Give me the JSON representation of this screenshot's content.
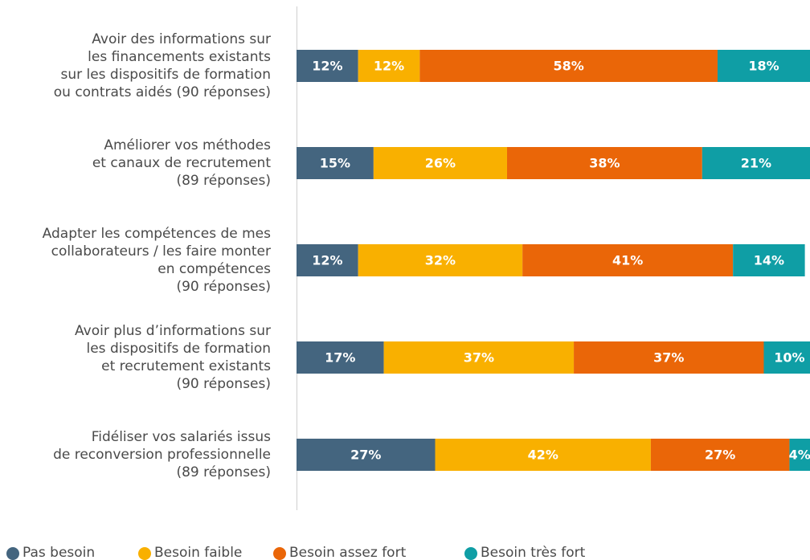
{
  "chart_data": {
    "type": "stacked_bar_horizontal",
    "categories": [
      [
        "Avoir des informations sur",
        "les financements existants",
        "sur les dispositifs de formation",
        "ou contrats aidés (90 réponses)"
      ],
      [
        "Améliorer vos méthodes",
        "et canaux de recrutement",
        "(89 réponses)"
      ],
      [
        "Adapter les compétences de mes",
        "collaborateurs / les faire monter",
        "en compétences",
        "(90 réponses)"
      ],
      [
        "Avoir plus d’informations sur",
        "les dispositifs de formation",
        "et recrutement existants",
        "(90 réponses)"
      ],
      [
        "Fidéliser vos salariés issus",
        "de reconversion professionnelle",
        "(89 réponses)"
      ]
    ],
    "series": [
      {
        "name": "Pas besoin",
        "color": "#44657f",
        "values": [
          12,
          15,
          12,
          17,
          27
        ],
        "value_labels": [
          "12%",
          "15%",
          "12%",
          "17%",
          "27%"
        ]
      },
      {
        "name": "Besoin faible",
        "color": "#f9b000",
        "values": [
          12,
          26,
          32,
          37,
          42
        ],
        "value_labels": [
          "12%",
          "26%",
          "32%",
          "37%",
          "42%"
        ]
      },
      {
        "name": "Besoin assez fort",
        "color": "#ea6608",
        "values": [
          58,
          38,
          41,
          37,
          27
        ],
        "value_labels": [
          "58%",
          "38%",
          "41%",
          "37%",
          "27%"
        ]
      },
      {
        "name": "Besoin très fort",
        "color": "#0f9ea5",
        "values": [
          18,
          21,
          14,
          10,
          4
        ],
        "value_labels": [
          "18%",
          "21%",
          "14%",
          "10%",
          "4%"
        ]
      }
    ],
    "xlim": [
      0,
      100
    ]
  }
}
